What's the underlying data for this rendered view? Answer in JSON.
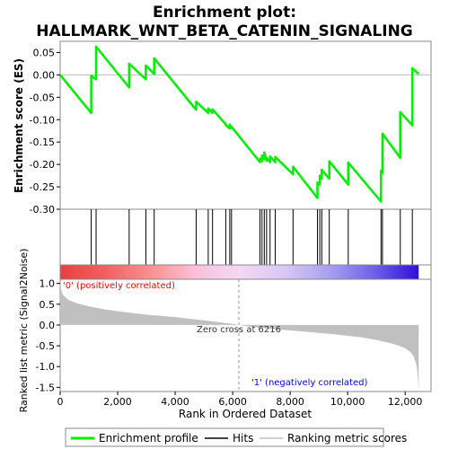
{
  "chart_data": {
    "type": "line",
    "title_line1": "Enrichment plot:",
    "title_line2": "HALLMARK_WNT_BETA_CATENIN_SIGNALING",
    "es_panel": {
      "ylabel": "Enrichment score (ES)",
      "ylim": [
        -0.3,
        0.075
      ],
      "yticks": [
        -0.3,
        -0.25,
        -0.2,
        -0.15,
        -0.1,
        -0.05,
        0.0,
        0.05
      ],
      "ytick_labels": [
        "-0.30",
        "-0.25",
        "-0.20",
        "-0.15",
        "-0.10",
        "-0.05",
        "0.00",
        "0.05"
      ],
      "line_color": "#00ee00",
      "series": [
        {
          "name": "Enrichment profile",
          "x": [
            0,
            1080,
            1080,
            1250,
            1250,
            2400,
            2400,
            2980,
            2980,
            3270,
            3270,
            4730,
            4730,
            5150,
            5150,
            5300,
            5300,
            5760,
            5760,
            5900,
            5900,
            5960,
            5960,
            6950,
            6950,
            7020,
            7020,
            7100,
            7100,
            7180,
            7180,
            7300,
            7300,
            7480,
            7480,
            8100,
            8100,
            8950,
            8950,
            9030,
            9030,
            9100,
            9100,
            9360,
            9360,
            10020,
            10020,
            11160,
            11160,
            11210,
            11210,
            11830,
            11830,
            12250,
            12250,
            12470
          ],
          "y": [
            0.0,
            -0.085,
            -0.002,
            -0.01,
            0.063,
            -0.028,
            0.025,
            -0.01,
            0.021,
            0.002,
            0.037,
            -0.078,
            -0.06,
            -0.085,
            -0.075,
            -0.085,
            -0.077,
            -0.11,
            -0.112,
            -0.12,
            -0.111,
            -0.118,
            -0.116,
            -0.195,
            -0.187,
            -0.193,
            -0.18,
            -0.188,
            -0.173,
            -0.192,
            -0.185,
            -0.195,
            -0.182,
            -0.195,
            -0.183,
            -0.222,
            -0.205,
            -0.275,
            -0.24,
            -0.245,
            -0.225,
            -0.232,
            -0.212,
            -0.232,
            -0.193,
            -0.245,
            -0.196,
            -0.283,
            -0.214,
            -0.219,
            -0.131,
            -0.185,
            -0.083,
            -0.113,
            0.015,
            0.002
          ]
        }
      ]
    },
    "hits": {
      "positions": [
        1080,
        1250,
        2400,
        2980,
        3270,
        4730,
        5150,
        5300,
        5760,
        5900,
        5960,
        6950,
        7020,
        7100,
        7180,
        7300,
        7480,
        8100,
        8950,
        9030,
        9100,
        9360,
        10020,
        11160,
        11210,
        11830,
        12250
      ]
    },
    "color_bar": {
      "stops": [
        "#e84040",
        "#f06060",
        "#f89090",
        "#fac0d8",
        "#f4d8f4",
        "#d8c8f4",
        "#a8a0f0",
        "#7060e8",
        "#3010d8"
      ],
      "label_pos": "'0' (positively correlated)",
      "label_neg": "'1' (negatively correlated)",
      "label_pos_color": "#ff0000",
      "label_neg_color": "#0000ff"
    },
    "metric_panel": {
      "ylabel": "Ranked list metric (Signal2Noise)",
      "ylim": [
        -1.6,
        1.1
      ],
      "yticks": [
        -1.5,
        -1.0,
        -0.5,
        0.0,
        0.5,
        1.0
      ],
      "ytick_labels": [
        "-1.5",
        "-1.0",
        "-0.5",
        "0.0",
        "0.5",
        "1.0"
      ],
      "fill_color": "#c0c0c0",
      "zero_cross_label": "Zero cross at 6216",
      "zero_cross": 6216,
      "curve": {
        "x": [
          0,
          30,
          100,
          300,
          600,
          1000,
          1500,
          2000,
          2500,
          3000,
          3500,
          4000,
          4500,
          5000,
          5500,
          6000,
          6216,
          6500,
          7000,
          7500,
          8000,
          8500,
          9000,
          9500,
          10000,
          10500,
          11000,
          11500,
          11800,
          12000,
          12200,
          12300,
          12380,
          12420,
          12450,
          12470
        ],
        "y": [
          1.0,
          0.85,
          0.72,
          0.6,
          0.52,
          0.45,
          0.38,
          0.33,
          0.29,
          0.25,
          0.22,
          0.19,
          0.15,
          0.11,
          0.07,
          0.025,
          0.0,
          -0.03,
          -0.07,
          -0.1,
          -0.13,
          -0.16,
          -0.19,
          -0.22,
          -0.26,
          -0.3,
          -0.36,
          -0.44,
          -0.5,
          -0.56,
          -0.66,
          -0.76,
          -0.92,
          -1.1,
          -1.35,
          -1.55
        ]
      }
    },
    "xaxis": {
      "xlabel": "Rank in Ordered Dataset",
      "xlim": [
        0,
        12900
      ],
      "xticks": [
        0,
        2000,
        4000,
        6000,
        8000,
        10000,
        12000
      ],
      "xtick_labels": [
        "0",
        "2,000",
        "4,000",
        "6,000",
        "8,000",
        "10,000",
        "12,000"
      ],
      "n_genes": 12470
    },
    "legend": {
      "placement": "bottom",
      "items": [
        {
          "label": "Enrichment profile",
          "color": "#00ee00"
        },
        {
          "label": "Hits",
          "color": "#000000"
        },
        {
          "label": "Ranking metric scores",
          "color": "#c0c0c0"
        }
      ]
    }
  }
}
